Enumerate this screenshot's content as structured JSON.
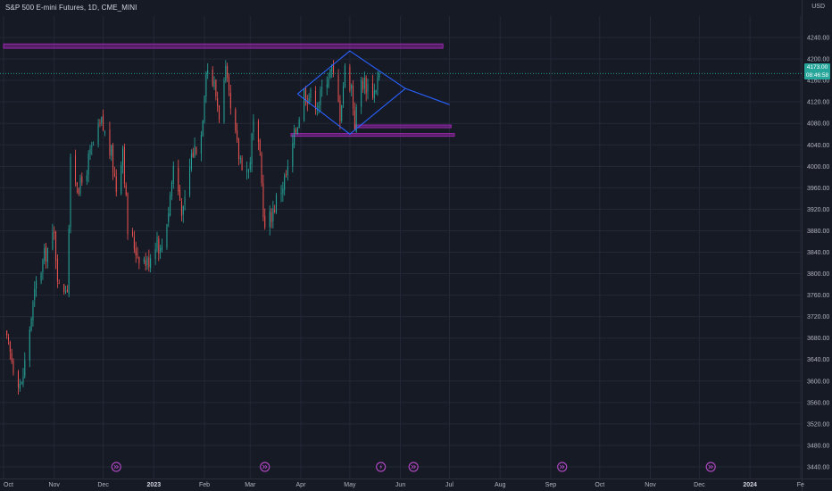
{
  "header": {
    "title": "S&P 500 E-mini Futures, 1D, CME_MINI",
    "currency": "USD"
  },
  "price_badge": {
    "price": "4173.00",
    "countdown": "08:46:58",
    "color": "#26a69a"
  },
  "colors": {
    "background": "#161a25",
    "up": "#26a69a",
    "down": "#ef5350",
    "pattern_lines": "#2962ff",
    "zones": "#9c27b0"
  },
  "chart_data": {
    "type": "candlestick",
    "title": "S&P 500 E-mini Futures, 1D, CME_MINI",
    "y_axis": {
      "currency": "USD",
      "range": [
        3430,
        4260
      ],
      "ticks": [
        3440,
        3480,
        3520,
        3560,
        3600,
        3640,
        3680,
        3720,
        3760,
        3800,
        3840,
        3880,
        3920,
        3960,
        4000,
        4040,
        4080,
        4120,
        4160,
        4200,
        4240
      ],
      "tick_labels": [
        "3440.00",
        "3480.00",
        "3520.00",
        "3560.00",
        "3600.00",
        "3640.00",
        "3680.00",
        "3720.00",
        "3760.00",
        "3800.00",
        "3840.00",
        "3880.00",
        "3920.00",
        "3960.00",
        "4000.00",
        "4040.00",
        "4080.00",
        "4120.00",
        "4160.00",
        "4200.00",
        "4240.00"
      ]
    },
    "x_axis": {
      "range": [
        "2022-10-01",
        "2024-01-31"
      ],
      "ticks": [
        {
          "date": "2022-10-01",
          "label": "Oct"
        },
        {
          "date": "2022-11-01",
          "label": "Nov"
        },
        {
          "date": "2022-12-01",
          "label": "Dec"
        },
        {
          "date": "2023-01-01",
          "label": "2023",
          "bold": true
        },
        {
          "date": "2023-02-01",
          "label": "Feb"
        },
        {
          "date": "2023-03-01",
          "label": "Mar"
        },
        {
          "date": "2023-04-01",
          "label": "Apr"
        },
        {
          "date": "2023-05-01",
          "label": "May"
        },
        {
          "date": "2023-06-01",
          "label": "Jun"
        },
        {
          "date": "2023-07-01",
          "label": "Jul"
        },
        {
          "date": "2023-08-01",
          "label": "Aug"
        },
        {
          "date": "2023-09-01",
          "label": "Sep"
        },
        {
          "date": "2023-10-01",
          "label": "Oct"
        },
        {
          "date": "2023-11-01",
          "label": "Nov"
        },
        {
          "date": "2023-12-01",
          "label": "Dec"
        },
        {
          "date": "2024-01-01",
          "label": "2024",
          "bold": true
        },
        {
          "date": "2024-02-01",
          "label": "Fe"
        }
      ]
    },
    "grid": true,
    "last_price": 4173.0,
    "anchor_points": [
      [
        "2022-10-01",
        3690
      ],
      [
        "2022-10-07",
        3630
      ],
      [
        "2022-10-12",
        3590
      ],
      [
        "2022-10-17",
        3700
      ],
      [
        "2022-10-21",
        3780
      ],
      [
        "2022-10-27",
        3840
      ],
      [
        "2022-11-01",
        3870
      ],
      [
        "2022-11-04",
        3770
      ],
      [
        "2022-11-09",
        3780
      ],
      [
        "2022-11-11",
        4000
      ],
      [
        "2022-11-17",
        3960
      ],
      [
        "2022-11-23",
        4020
      ],
      [
        "2022-11-30",
        4080
      ],
      [
        "2022-12-02",
        4060
      ],
      [
        "2022-12-06",
        4020
      ],
      [
        "2022-12-09",
        3960
      ],
      [
        "2022-12-13",
        4040
      ],
      [
        "2022-12-16",
        3880
      ],
      [
        "2022-12-22",
        3840
      ],
      [
        "2022-12-28",
        3820
      ],
      [
        "2023-01-03",
        3870
      ],
      [
        "2023-01-05",
        3840
      ],
      [
        "2023-01-10",
        3920
      ],
      [
        "2023-01-13",
        4000
      ],
      [
        "2023-01-19",
        3910
      ],
      [
        "2023-01-24",
        4020
      ],
      [
        "2023-01-30",
        4060
      ],
      [
        "2023-02-02",
        4190
      ],
      [
        "2023-02-07",
        4150
      ],
      [
        "2023-02-10",
        4100
      ],
      [
        "2023-02-14",
        4170
      ],
      [
        "2023-02-17",
        4100
      ],
      [
        "2023-02-22",
        4020
      ],
      [
        "2023-02-28",
        3990
      ],
      [
        "2023-03-03",
        4080
      ],
      [
        "2023-03-07",
        4010
      ],
      [
        "2023-03-10",
        3880
      ],
      [
        "2023-03-15",
        3920
      ],
      [
        "2023-03-20",
        3960
      ],
      [
        "2023-03-24",
        3990
      ],
      [
        "2023-03-29",
        4070
      ],
      [
        "2023-04-03",
        4140
      ],
      [
        "2023-04-07",
        4130
      ],
      [
        "2023-04-12",
        4120
      ],
      [
        "2023-04-17",
        4170
      ],
      [
        "2023-04-20",
        4180
      ],
      [
        "2023-04-25",
        4100
      ],
      [
        "2023-04-28",
        4180
      ],
      [
        "2023-05-02",
        4150
      ],
      [
        "2023-05-04",
        4080
      ],
      [
        "2023-05-08",
        4160
      ],
      [
        "2023-05-12",
        4150
      ],
      [
        "2023-05-16",
        4140
      ],
      [
        "2023-05-19",
        4173
      ]
    ],
    "drawings": {
      "diamond_pattern": [
        [
          "2023-03-30",
          4135
        ],
        [
          "2023-05-01",
          4215
        ],
        [
          "2023-06-04",
          4145
        ],
        [
          "2023-05-01",
          4060
        ],
        [
          "2023-03-30",
          4135
        ]
      ],
      "projection_line": [
        [
          "2023-06-04",
          4145
        ],
        [
          "2023-07-01",
          4115
        ]
      ],
      "zones": [
        {
          "start": "2022-10-01",
          "end": "2023-06-27",
          "low": 4220,
          "high": 4228
        },
        {
          "start": "2023-05-04",
          "end": "2023-07-02",
          "low": 4072,
          "high": 4077
        },
        {
          "start": "2023-03-26",
          "end": "2023-07-04",
          "low": 4056,
          "high": 4061
        }
      ]
    },
    "event_markers": [
      {
        "date": "2022-12-09",
        "icon": "dividend-icon"
      },
      {
        "date": "2023-03-10",
        "icon": "dividend-icon"
      },
      {
        "date": "2023-05-20",
        "icon": "earnings-icon"
      },
      {
        "date": "2023-06-09",
        "icon": "dividend-icon"
      },
      {
        "date": "2023-09-08",
        "icon": "dividend-icon"
      },
      {
        "date": "2023-12-08",
        "icon": "dividend-icon"
      }
    ]
  }
}
